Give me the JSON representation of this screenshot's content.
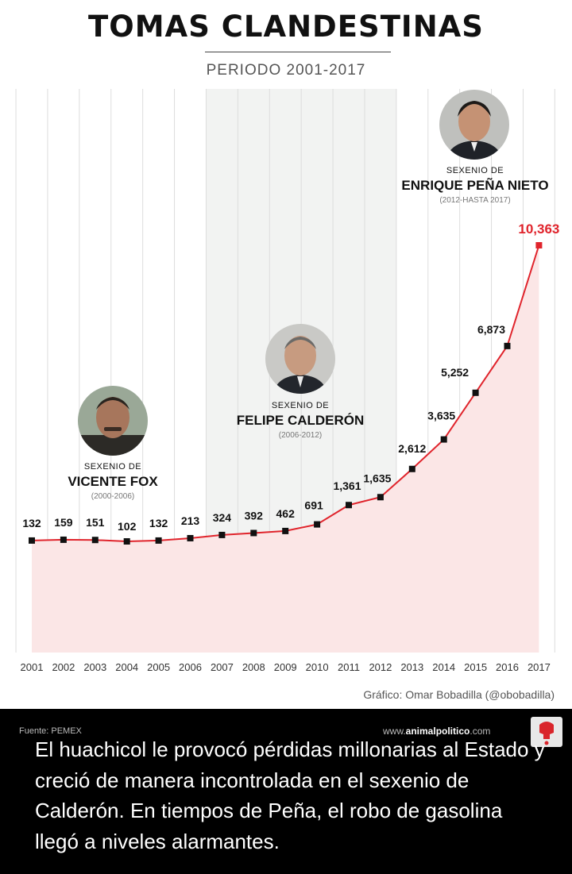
{
  "poster": {
    "title": "TOMAS CLANDESTINAS",
    "subtitle": "PERIODO 2001-2017",
    "credit": "Gráfico: Omar Bobadilla (@obobadilla)"
  },
  "presidents": [
    {
      "lead": "SEXENIO DE",
      "name": "VICENTE FOX",
      "period": "(2000-2006)"
    },
    {
      "lead": "SEXENIO DE",
      "name": "FELIPE CALDERÓN",
      "period": "(2006-2012)"
    },
    {
      "lead": "SEXENIO DE",
      "name": "ENRIQUE PEÑA NIETO",
      "period": "(2012-HASTA 2017)"
    }
  ],
  "footer": {
    "source": "Fuente: PEMEX",
    "site_prefix": "www.",
    "site_bold": "animalpolitico",
    "site_suffix": ".com",
    "overlay_text": "El huachicol le provocó pérdidas millonarias al Estado y creció de manera incontrolada en el sexenio de Calderón. En tiempos de Peña, el robo de gasolina llegó a niveles alarmantes."
  },
  "colors": {
    "line": "#e0242c",
    "area": "#fbe6e6",
    "highlight_band": "#f2f3f2",
    "grid": "#dddddd",
    "last_label": "#e0242c"
  },
  "chart_data": {
    "type": "line",
    "title": "TOMAS CLANDESTINAS",
    "subtitle": "PERIODO 2001-2017",
    "xlabel": "",
    "ylabel": "",
    "categories": [
      "2001",
      "2002",
      "2003",
      "2004",
      "2005",
      "2006",
      "2007",
      "2008",
      "2009",
      "2010",
      "2011",
      "2012",
      "2013",
      "2014",
      "2015",
      "2016",
      "2017"
    ],
    "series": [
      {
        "values": [
          132,
          159,
          151,
          102,
          132,
          213,
          324,
          392,
          462,
          691,
          1361,
          1635,
          2612,
          3635,
          5252,
          6873,
          10363
        ]
      }
    ],
    "value_labels": [
      "132",
      "159",
      "151",
      "102",
      "132",
      "213",
      "324",
      "392",
      "462",
      "691",
      "1,361",
      "1,635",
      "2,612",
      "3,635",
      "5,252",
      "6,873",
      "10,363"
    ],
    "highlight_band": [
      "2007",
      "2012"
    ],
    "grid": "vertical",
    "legend": "none",
    "ylim": [
      0,
      10363
    ]
  }
}
